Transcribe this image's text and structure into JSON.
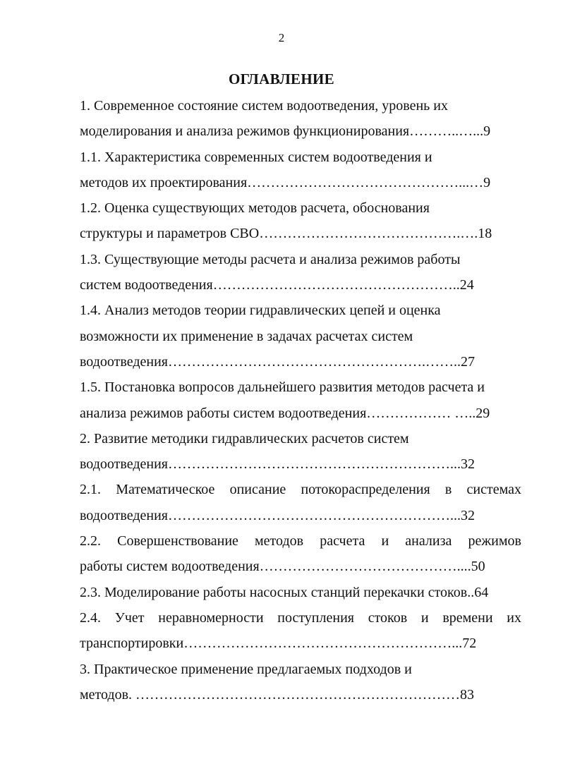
{
  "page_number": "2",
  "title": "ОГЛАВЛЕНИЕ",
  "lines": [
    {
      "text": "1. Современное состояние систем водоотведения, уровень        их",
      "justify": false
    },
    {
      "text": "моделирования и анализа режимов функционирования………..…...9",
      "justify": false
    },
    {
      "text": "1.1. Характеристика современных систем водоотведения и",
      "justify": false
    },
    {
      "text": "методов их проектирования………………………………………...…9",
      "justify": false
    },
    {
      "text": "1.2. Оценка существующих методов расчета, обоснования",
      "justify": false
    },
    {
      "text": "структуры и параметров СВО…………………………………….….18",
      "justify": false
    },
    {
      "text": "1.3. Существующие методы расчета и анализа режимов работы",
      "justify": false
    },
    {
      "text": "систем водоотведения……………………………………………..24",
      "justify": false
    },
    {
      "text": "1.4. Анализ методов теории гидравлических цепей и оценка",
      "justify": false
    },
    {
      "text": "возможности их применение в задачах расчетах систем",
      "justify": false
    },
    {
      "text": "водоотведения……………………………………………….……..27",
      "justify": false
    },
    {
      "text": "1.5. Постановка вопросов дальнейшего развития методов расчета и",
      "justify": false
    },
    {
      "text": "анализа режимов работы систем водоотведения……………… …..29",
      "justify": false
    },
    {
      "text": "2. Развитие методики  гидравлических расчетов систем",
      "justify": false
    },
    {
      "text": "водоотведения……………………………………………………...32",
      "justify": false
    },
    {
      "text": "2.1. Математическое описание потокораспределения в  системах",
      "justify": true
    },
    {
      "text": "водоотведения……………………………………………………...32",
      "justify": false
    },
    {
      "text": "2.2. Совершенствование методов расчета и анализа режимов",
      "justify": true
    },
    {
      "text": "работы  систем водоотведения……………………………………....50",
      "justify": false
    },
    {
      "text": "2.3. Моделирование работы насосных станций перекачки стоков..64",
      "justify": false
    },
    {
      "text": "2.4. Учет неравномерности поступления стоков и времени их",
      "justify": true
    },
    {
      "text": "транспортировки…………………………………………………...72",
      "justify": false
    },
    {
      "text": "3. Практическое применение предлагаемых подходов и",
      "justify": false
    },
    {
      "text": "методов. ……………………………………………………………83",
      "justify": false
    }
  ]
}
